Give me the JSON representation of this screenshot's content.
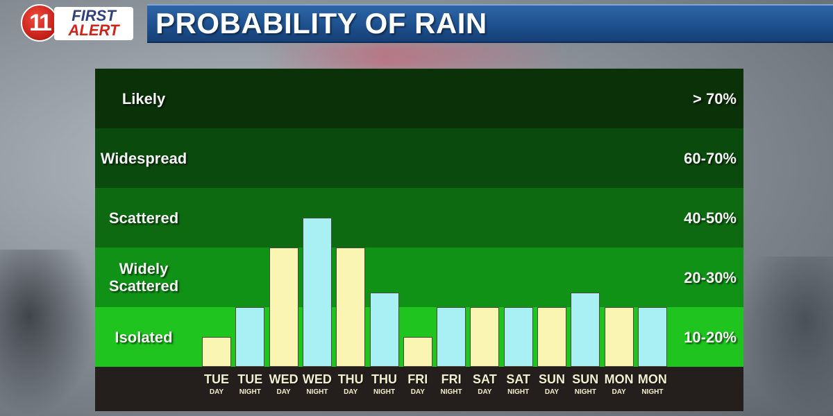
{
  "header": {
    "logo_number": "11",
    "logo_first": "FIRST",
    "logo_alert": "ALERT",
    "title": "PROBABILITY OF RAIN"
  },
  "colors": {
    "day_bar": "#fbf5b4",
    "night_bar": "#a9f0f5",
    "band_likely": "#0b3109",
    "band_widespread": "#0a4a0c",
    "band_scattered": "#0d6a10",
    "band_widely_scattered": "#0f9216",
    "band_isolated": "#1fc41f",
    "title_bar": "#1c4e8b"
  },
  "chart_data": {
    "type": "bar",
    "title": "PROBABILITY OF RAIN",
    "bands": [
      {
        "label": "Likely",
        "range": "> 70%"
      },
      {
        "label": "Widespread",
        "range": "60-70%"
      },
      {
        "label": "Scattered",
        "range": "40-50%"
      },
      {
        "label": "Widely Scattered",
        "range": "20-30%"
      },
      {
        "label": "Isolated",
        "range": "10-20%"
      }
    ],
    "categories": [
      {
        "day": "TUE",
        "part": "DAY"
      },
      {
        "day": "TUE",
        "part": "NIGHT"
      },
      {
        "day": "WED",
        "part": "DAY"
      },
      {
        "day": "WED",
        "part": "NIGHT"
      },
      {
        "day": "THU",
        "part": "DAY"
      },
      {
        "day": "THU",
        "part": "NIGHT"
      },
      {
        "day": "FRI",
        "part": "DAY"
      },
      {
        "day": "FRI",
        "part": "NIGHT"
      },
      {
        "day": "SAT",
        "part": "DAY"
      },
      {
        "day": "SAT",
        "part": "NIGHT"
      },
      {
        "day": "SUN",
        "part": "DAY"
      },
      {
        "day": "SUN",
        "part": "NIGHT"
      },
      {
        "day": "MON",
        "part": "DAY"
      },
      {
        "day": "MON",
        "part": "NIGHT"
      }
    ],
    "values": [
      0.5,
      1,
      2,
      2.5,
      2,
      1.25,
      0.5,
      1,
      1,
      1,
      1,
      1.25,
      1,
      1
    ],
    "value_scale": "band index: 0 = bottom of Isolated band, 5 = top of Likely band",
    "ylim": [
      0,
      5
    ],
    "grid": false
  }
}
